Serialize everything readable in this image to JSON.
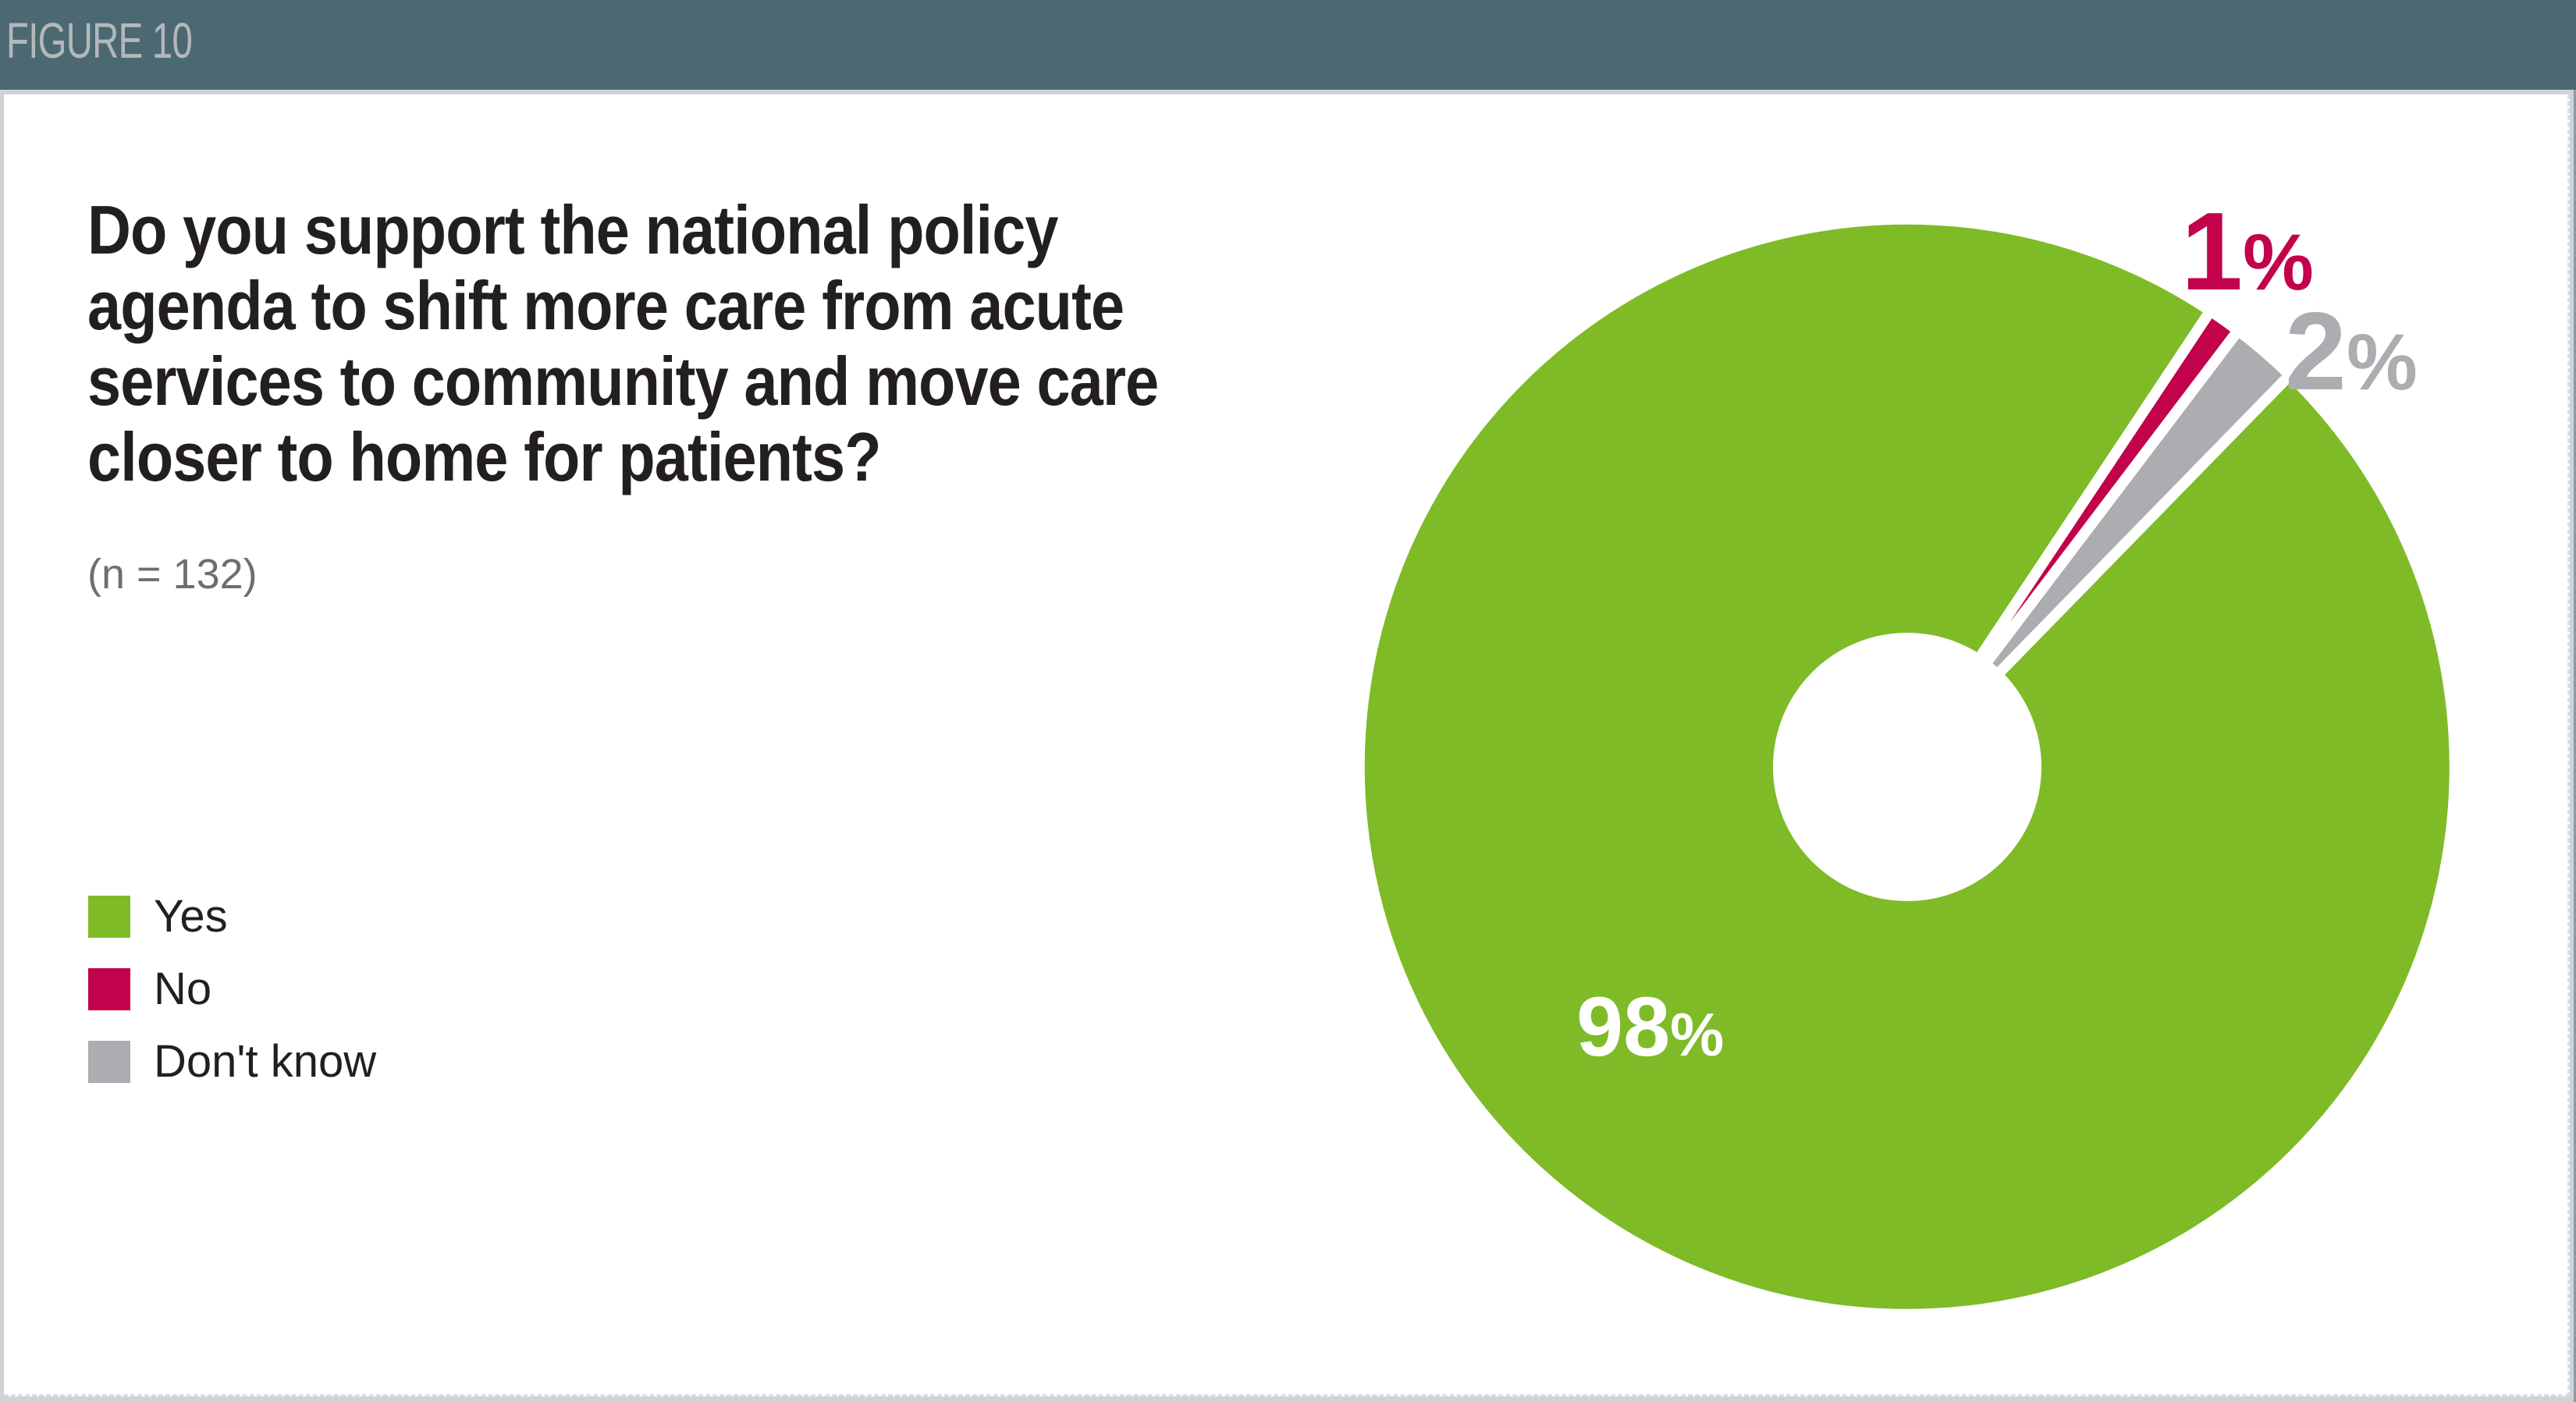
{
  "figure_label": "FIGURE 10",
  "question": {
    "title": "Do you support the national policy\nagenda to shift more care from acute\nservices to community and move care\ncloser to home for patients?",
    "sample_size": "(n = 132)"
  },
  "chart_data": {
    "type": "pie",
    "subtype": "donut",
    "categories": [
      "Yes",
      "No",
      "Don't know"
    ],
    "values": [
      98,
      1,
      2
    ],
    "unit_symbol": "%",
    "display_values": [
      "98",
      "1",
      "2"
    ],
    "colors": [
      "#7ebb27",
      "#c2024b",
      "#abadb0"
    ],
    "label_colors": [
      "#ffffff",
      "#c2024b",
      "#abadb0"
    ],
    "legend_position": "left",
    "start_angle_deg": 44.3,
    "clockwise": true,
    "donut_hole_ratio": 0.245,
    "slice_separator_color": "#ffffff"
  },
  "styles": {
    "header_bg": "#4c6973",
    "header_text": "#b4b8ba",
    "title_color": "#231f20",
    "muted_text": "#6d6e71",
    "page_edge": "#ccd4d6",
    "edge_line": "#8d9ba0",
    "dash_border": "#dadfe1"
  }
}
